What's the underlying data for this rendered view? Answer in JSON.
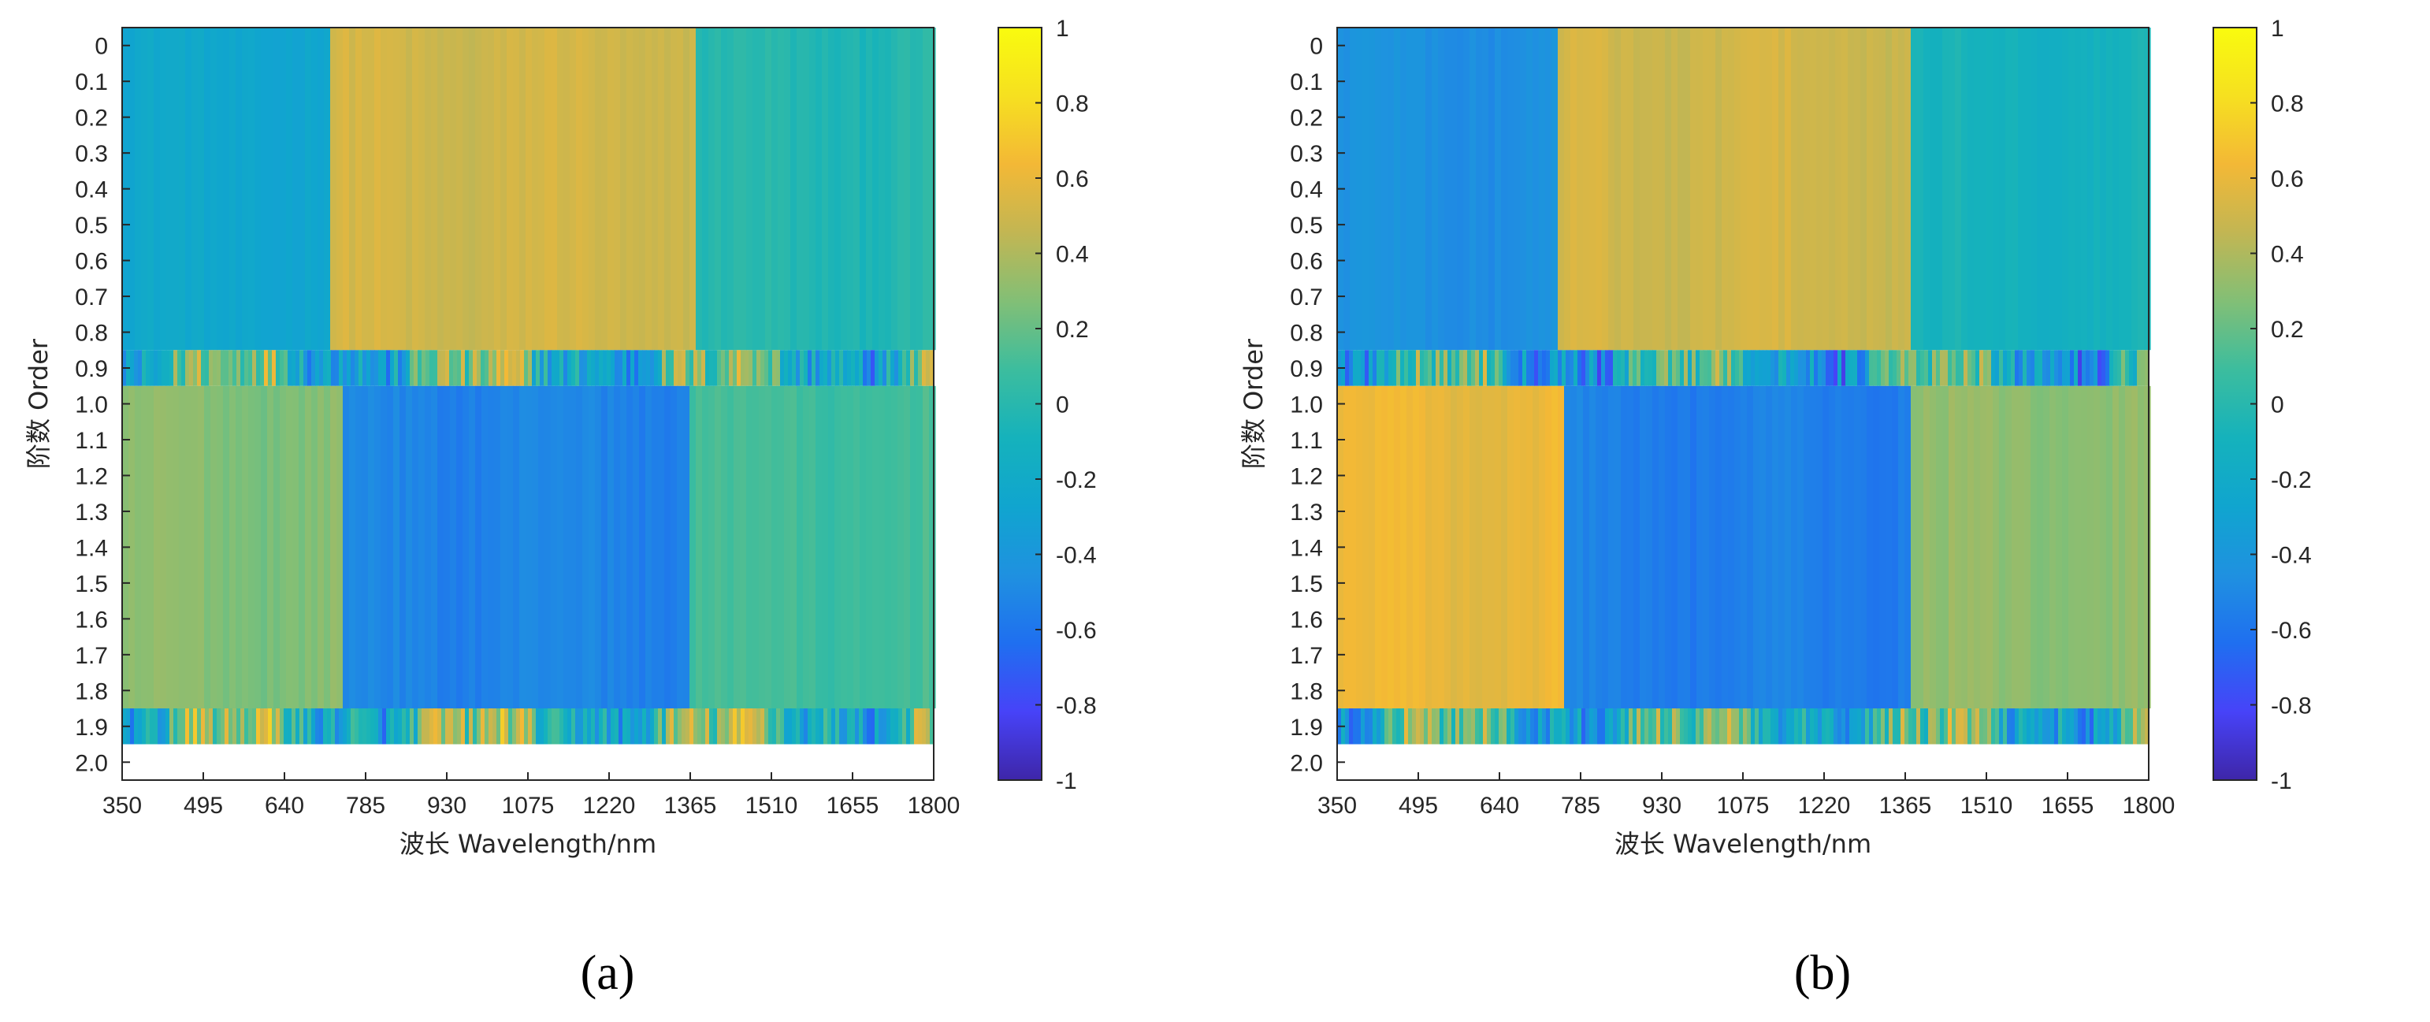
{
  "panels": [
    {
      "label": "(a)",
      "chart_data": {
        "type": "heatmap",
        "title": "",
        "xlabel": "波长 Wavelength/nm",
        "ylabel": "阶数 Order",
        "x_ticks": [
          "350",
          "495",
          "640",
          "785",
          "930",
          "1075",
          "1220",
          "1365",
          "1510",
          "1655",
          "1800"
        ],
        "y_ticks": [
          "0",
          "0.1",
          "0.2",
          "0.3",
          "0.4",
          "0.5",
          "0.6",
          "0.7",
          "0.8",
          "0.9",
          "1.0",
          "1.1",
          "1.2",
          "1.3",
          "1.4",
          "1.5",
          "1.6",
          "1.7",
          "1.8",
          "1.9",
          "2.0"
        ],
        "xlim": [
          350,
          1800
        ],
        "ylim": [
          0,
          2.0
        ],
        "colorbar": {
          "min": -1,
          "max": 1,
          "ticks": [
            "1",
            "0.8",
            "0.6",
            "0.4",
            "0.2",
            "0",
            "-0.2",
            "-0.4",
            "-0.6",
            "-0.8",
            "-1"
          ]
        },
        "colormap": [
          "#3e26a8",
          "#4743f8",
          "#1f6ff0",
          "#1f91e0",
          "#10a5cf",
          "#15b2bc",
          "#3cbd9e",
          "#82bf76",
          "#c2b653",
          "#f3b836",
          "#f6e020",
          "#f9fb0e"
        ],
        "bands": [
          {
            "order_range": [
              0,
              0.9
            ],
            "segments": [
              {
                "x": [
                  350,
                  725
                ],
                "value": -0.25
              },
              {
                "x": [
                  725,
                  1380
                ],
                "value": 0.5
              },
              {
                "x": [
                  1380,
                  1800
                ],
                "value": -0.02
              }
            ]
          },
          {
            "order_range": [
              0.9,
              1.0
            ],
            "segments": [
              {
                "x": [
                  350,
                  1800
                ],
                "value": 0.0,
                "note": "noisy"
              }
            ]
          },
          {
            "order_range": [
              1.0,
              1.9
            ],
            "segments": [
              {
                "x": [
                  350,
                  740
                ],
                "value": 0.28
              },
              {
                "x": [
                  740,
                  1360
                ],
                "value": -0.52
              },
              {
                "x": [
                  1360,
                  1800
                ],
                "value": 0.1
              }
            ]
          },
          {
            "order_range": [
              1.9,
              2.0
            ],
            "segments": [
              {
                "x": [
                  350,
                  1800
                ],
                "value": 0.05,
                "note": "noisy"
              }
            ]
          }
        ]
      }
    },
    {
      "label": "(b)",
      "chart_data": {
        "type": "heatmap",
        "title": "",
        "xlabel": "波长 Wavelength/nm",
        "ylabel": "阶数 Order",
        "x_ticks": [
          "350",
          "495",
          "640",
          "785",
          "930",
          "1075",
          "1220",
          "1365",
          "1510",
          "1655",
          "1800"
        ],
        "y_ticks": [
          "0",
          "0.1",
          "0.2",
          "0.3",
          "0.4",
          "0.5",
          "0.6",
          "0.7",
          "0.8",
          "0.9",
          "1.0",
          "1.1",
          "1.2",
          "1.3",
          "1.4",
          "1.5",
          "1.6",
          "1.7",
          "1.8",
          "1.9",
          "2.0"
        ],
        "xlim": [
          350,
          1800
        ],
        "ylim": [
          0,
          2.0
        ],
        "colorbar": {
          "min": -1,
          "max": 1,
          "ticks": [
            "1",
            "0.8",
            "0.6",
            "0.4",
            "0.2",
            "0",
            "-0.2",
            "-0.4",
            "-0.6",
            "-0.8",
            "-1"
          ]
        },
        "colormap": [
          "#3e26a8",
          "#4743f8",
          "#1f6ff0",
          "#1f91e0",
          "#10a5cf",
          "#15b2bc",
          "#3cbd9e",
          "#82bf76",
          "#c2b653",
          "#f3b836",
          "#f6e020",
          "#f9fb0e"
        ],
        "bands": [
          {
            "order_range": [
              0,
              0.9
            ],
            "segments": [
              {
                "x": [
                  350,
                  740
                ],
                "value": -0.45
              },
              {
                "x": [
                  740,
                  1380
                ],
                "value": 0.5
              },
              {
                "x": [
                  1380,
                  1800
                ],
                "value": -0.1
              }
            ]
          },
          {
            "order_range": [
              0.9,
              1.0
            ],
            "segments": [
              {
                "x": [
                  350,
                  1800
                ],
                "value": -0.1,
                "note": "noisy"
              }
            ]
          },
          {
            "order_range": [
              1.0,
              1.9
            ],
            "segments": [
              {
                "x": [
                  350,
                  750
                ],
                "value": 0.6
              },
              {
                "x": [
                  750,
                  1370
                ],
                "value": -0.55
              },
              {
                "x": [
                  1370,
                  1800
                ],
                "value": 0.3
              }
            ]
          },
          {
            "order_range": [
              1.9,
              2.0
            ],
            "segments": [
              {
                "x": [
                  350,
                  1800
                ],
                "value": -0.05,
                "note": "noisy"
              }
            ]
          }
        ]
      }
    }
  ]
}
